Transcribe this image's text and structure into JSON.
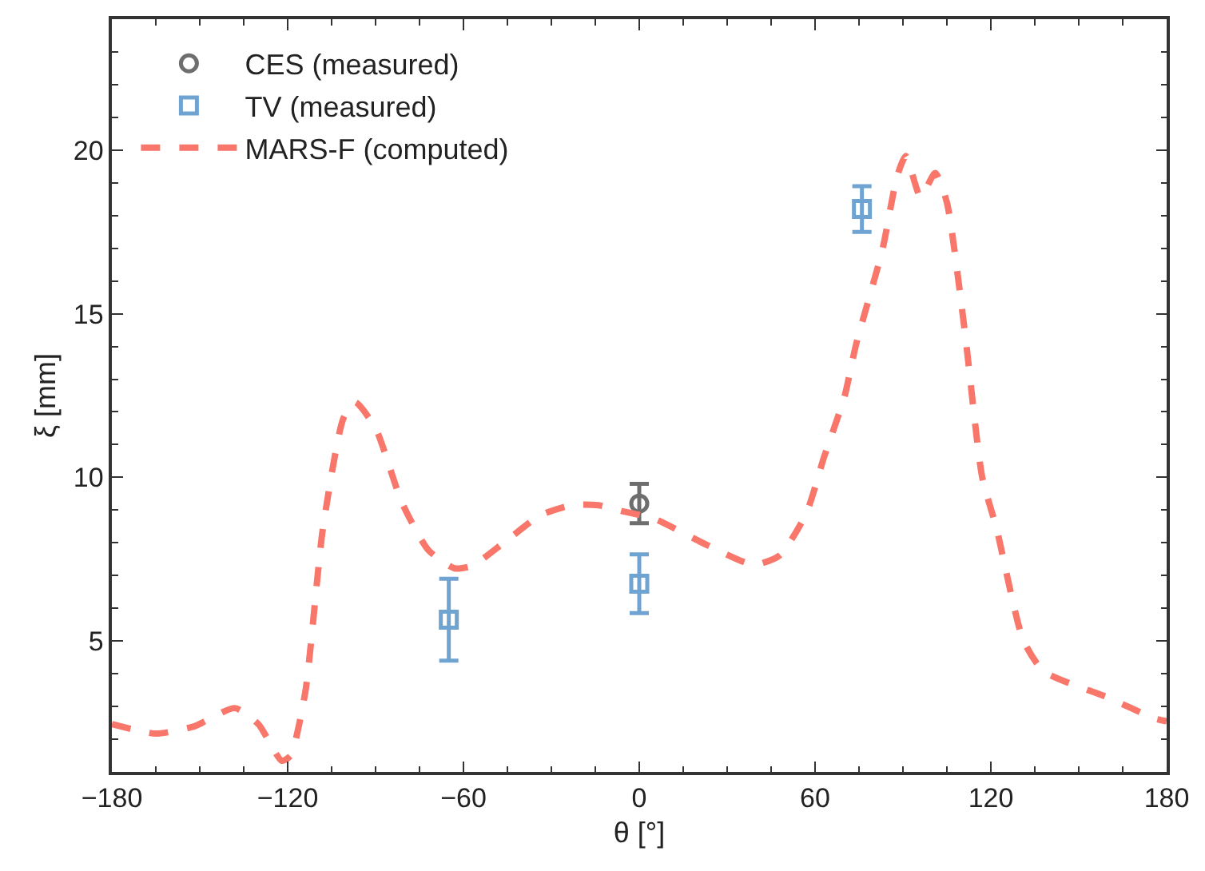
{
  "chart_data": {
    "type": "scatter",
    "xlabel": "θ [°]",
    "ylabel": "ξ [mm]",
    "xlim": [
      -180,
      180
    ],
    "ylim": [
      1,
      24
    ],
    "xticks": [
      -180,
      {
        "value": -165,
        "label": null
      },
      {
        "value": -150,
        "label": null
      },
      {
        "value": -135,
        "label": null
      },
      -120,
      {
        "value": -105,
        "label": null
      },
      {
        "value": -90,
        "label": null
      },
      {
        "value": -75,
        "label": null
      },
      -60,
      {
        "value": -45,
        "label": null
      },
      {
        "value": -30,
        "label": null
      },
      {
        "value": -15,
        "label": null
      },
      0,
      {
        "value": 15,
        "label": null
      },
      {
        "value": 30,
        "label": null
      },
      {
        "value": 45,
        "label": null
      },
      60,
      {
        "value": 75,
        "label": null
      },
      {
        "value": 90,
        "label": null
      },
      {
        "value": 105,
        "label": null
      },
      120,
      {
        "value": 135,
        "label": null
      },
      {
        "value": 150,
        "label": null
      },
      {
        "value": 165,
        "label": null
      },
      180
    ],
    "yticks": [
      {
        "value": 2,
        "label": null
      },
      {
        "value": 3,
        "label": null
      },
      {
        "value": 4,
        "label": null
      },
      5,
      {
        "value": 6,
        "label": null
      },
      {
        "value": 7,
        "label": null
      },
      {
        "value": 8,
        "label": null
      },
      {
        "value": 9,
        "label": null
      },
      10,
      {
        "value": 11,
        "label": null
      },
      {
        "value": 12,
        "label": null
      },
      {
        "value": 13,
        "label": null
      },
      {
        "value": 14,
        "label": null
      },
      15,
      {
        "value": 16,
        "label": null
      },
      {
        "value": 17,
        "label": null
      },
      {
        "value": 18,
        "label": null
      },
      {
        "value": 19,
        "label": null
      },
      20,
      {
        "value": 21,
        "label": null
      },
      {
        "value": 22,
        "label": null
      },
      {
        "value": 23,
        "label": null
      }
    ],
    "grid": false,
    "legend": "top left",
    "series": [
      {
        "name": "CES (measured)",
        "type": "scatter",
        "marker": "circle",
        "color": "#6e6e6e",
        "x": [
          0
        ],
        "values": [
          9.2
        ],
        "errors": [
          0.6
        ]
      },
      {
        "name": "TV (measured)",
        "type": "scatter",
        "marker": "square",
        "color": "#6fa3d2",
        "x": [
          -65,
          0,
          76
        ],
        "values": [
          5.65,
          6.75,
          18.2
        ],
        "errors": [
          1.25,
          0.9,
          0.7
        ]
      },
      {
        "name": "MARS-F (computed)",
        "type": "line",
        "line_style": "dashed",
        "marker": "none",
        "color": "#f8766a",
        "x": [
          -180,
          -165,
          -152,
          -138,
          -130,
          -122,
          -119,
          -114,
          -108,
          -101,
          -97,
          -90,
          -81,
          -72,
          -63,
          -57,
          -46,
          -34,
          -23,
          -14,
          -5,
          5,
          23,
          39,
          48,
          57,
          63,
          70,
          74,
          83,
          88,
          91,
          96,
          101,
          105,
          111,
          117,
          122,
          131,
          138,
          160,
          176,
          180
        ],
        "values": [
          2.46,
          2.17,
          2.39,
          2.95,
          2.46,
          1.34,
          1.5,
          3.43,
          8.42,
          11.8,
          12.3,
          11.5,
          9.23,
          7.78,
          7.22,
          7.3,
          8.02,
          8.83,
          9.15,
          9.15,
          8.95,
          8.74,
          7.94,
          7.33,
          7.62,
          8.9,
          10.6,
          12.45,
          14.06,
          16.96,
          19.2,
          19.82,
          18.57,
          19.3,
          18.4,
          14.54,
          10.03,
          8.42,
          5.04,
          4.08,
          3.27,
          2.63,
          2.55
        ]
      }
    ]
  }
}
